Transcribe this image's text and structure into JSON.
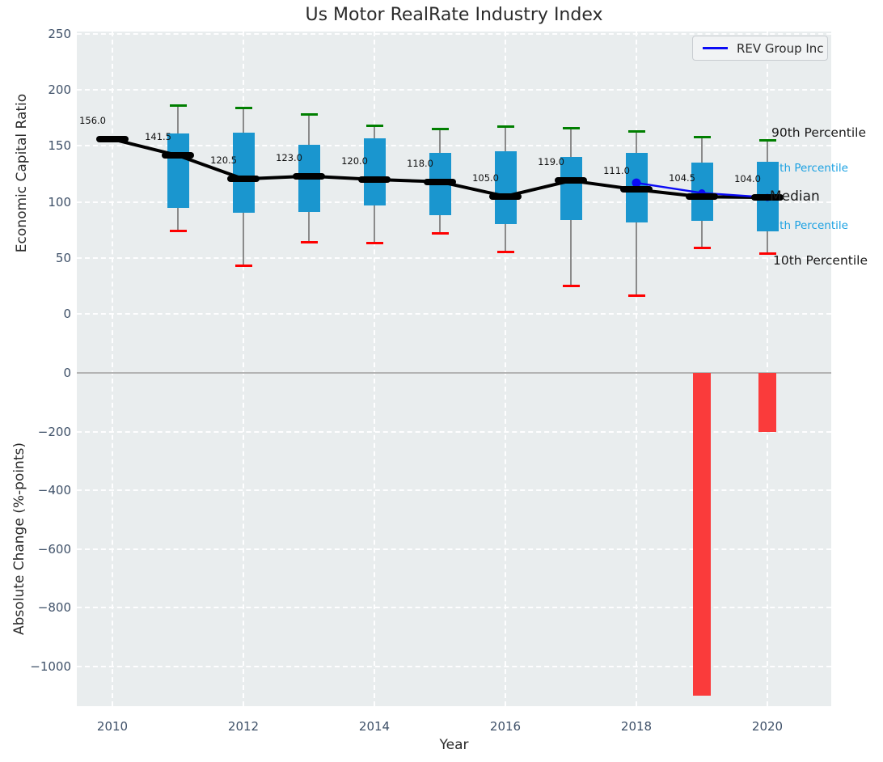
{
  "title": "Us Motor RealRate Industry Index",
  "legend": {
    "label": "REV Group Inc"
  },
  "xlabel": "Year",
  "top_axis": {
    "ylabel": "Economic Capital Ratio",
    "yticks": [
      250,
      200,
      150,
      100,
      50,
      0
    ]
  },
  "bottom_axis": {
    "ylabel": "Absolute Change (%-points)",
    "yticks": [
      0,
      -200,
      -400,
      -600,
      -800,
      -1000
    ]
  },
  "xticks": [
    2010,
    2012,
    2014,
    2016,
    2018,
    2020
  ],
  "annotations": {
    "p90": "90th Percentile",
    "p75": "75th Percentile",
    "median": "Median",
    "p25": "25th Percentile",
    "p10": "10th Percentile"
  },
  "colors": {
    "box": "#1a96cf",
    "whisker": "#8a8a8a",
    "cap_high": "#007f00",
    "cap_low": "#fe0000",
    "median": "#000000",
    "trend": "#000000",
    "overlay": "#0b0bf5",
    "bar": "#fa3b3b",
    "annotation_blue": "#1ba1e2"
  },
  "chart_data": [
    {
      "type": "box",
      "title": "Us Motor RealRate Industry Index",
      "ylabel": "Economic Capital Ratio",
      "ylim": [
        0,
        250
      ],
      "grid": true,
      "boxes": [
        {
          "year": 2010,
          "median": 156.0,
          "label": "156.0"
        },
        {
          "year": 2011,
          "median": 141.5,
          "q1": 95,
          "q3": 161,
          "p10": 74,
          "p90": 186,
          "label": "141.5"
        },
        {
          "year": 2012,
          "median": 120.5,
          "q1": 90,
          "q3": 162,
          "p10": 43,
          "p90": 184,
          "label": "120.5"
        },
        {
          "year": 2013,
          "median": 123.0,
          "q1": 91,
          "q3": 151,
          "p10": 64,
          "p90": 178,
          "label": "123.0"
        },
        {
          "year": 2014,
          "median": 120.0,
          "q1": 97,
          "q3": 157,
          "p10": 63,
          "p90": 168,
          "label": "120.0"
        },
        {
          "year": 2015,
          "median": 118.0,
          "q1": 88,
          "q3": 144,
          "p10": 72,
          "p90": 165,
          "label": "118.0"
        },
        {
          "year": 2016,
          "median": 105.0,
          "q1": 80,
          "q3": 145,
          "p10": 55,
          "p90": 167,
          "label": "105.0"
        },
        {
          "year": 2017,
          "median": 119.0,
          "q1": 84,
          "q3": 140,
          "p10": 25,
          "p90": 166,
          "label": "119.0"
        },
        {
          "year": 2018,
          "median": 111.0,
          "q1": 82,
          "q3": 144,
          "p10": 16,
          "p90": 163,
          "label": "111.0"
        },
        {
          "year": 2019,
          "median": 104.5,
          "q1": 83,
          "q3": 135,
          "p10": 59,
          "p90": 158,
          "label": "104.5"
        },
        {
          "year": 2020,
          "median": 104.0,
          "q1": 74,
          "q3": 136,
          "p10": 54,
          "p90": 155,
          "label": "104.0"
        }
      ],
      "overlay_line": {
        "name": "REV Group Inc",
        "x": [
          2018,
          2019,
          2020
        ],
        "y": [
          117,
          108,
          104
        ]
      },
      "legend_position": "upper right"
    },
    {
      "type": "bar",
      "ylabel": "Absolute Change (%-points)",
      "xlabel": "Year",
      "x": [
        2019,
        2020
      ],
      "values": [
        -1100,
        -200
      ],
      "ylim": [
        -1150,
        0
      ],
      "grid": true
    }
  ]
}
